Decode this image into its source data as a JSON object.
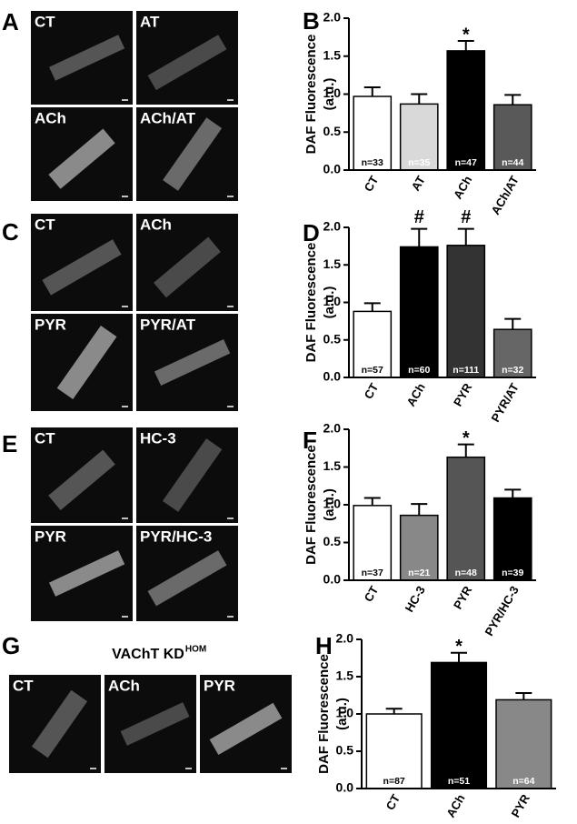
{
  "image_panels": [
    {
      "letter": "A",
      "labels": [
        "CT",
        "AT",
        "ACh",
        "ACh/AT"
      ]
    },
    {
      "letter": "C",
      "labels": [
        "CT",
        "ACh",
        "PYR",
        "PYR/AT"
      ]
    },
    {
      "letter": "E",
      "labels": [
        "CT",
        "HC-3",
        "PYR",
        "PYR/HC-3"
      ]
    },
    {
      "letter": "G",
      "title": "VAChT KD",
      "title_superscript": "HOM",
      "labels": [
        "CT",
        "ACh",
        "PYR"
      ]
    }
  ],
  "chart_data": [
    {
      "type": "bar",
      "letter": "B",
      "ylabel": "DAF Fluorescence",
      "ylabel_unit": "(a.u.)",
      "categories": [
        "CT",
        "AT",
        "ACh",
        "ACh/AT"
      ],
      "values": [
        0.97,
        0.87,
        1.57,
        0.86
      ],
      "errors": [
        0.12,
        0.13,
        0.13,
        0.13
      ],
      "colors": [
        "#ffffff",
        "#d9d9d9",
        "#000000",
        "#595959"
      ],
      "n_labels": [
        "n=33",
        "n=35",
        "n=47",
        "n=44"
      ],
      "markers": [
        null,
        null,
        "*",
        null
      ],
      "ylim": [
        0,
        2
      ],
      "yticks": [
        {
          "value": 0,
          "label": "0.0"
        },
        0.5,
        {
          "value": 1,
          "label": "1.0"
        },
        1.5,
        {
          "value": 2,
          "label": "2.0"
        }
      ]
    },
    {
      "type": "bar",
      "letter": "D",
      "ylabel": "DAF Fluorescence",
      "ylabel_unit": "(a.u.)",
      "categories": [
        "CT",
        "ACh",
        "PYR",
        "PYR/AT"
      ],
      "values": [
        0.88,
        1.74,
        1.76,
        0.64
      ],
      "errors": [
        0.11,
        0.24,
        0.22,
        0.14
      ],
      "colors": [
        "#ffffff",
        "#000000",
        "#333333",
        "#666666"
      ],
      "n_labels": [
        "n=57",
        "n=60",
        "n=111",
        "n=32"
      ],
      "markers": [
        null,
        "#",
        "#",
        null
      ],
      "ylim": [
        0,
        2
      ],
      "yticks": [
        {
          "value": 0,
          "label": "0.0"
        },
        0.5,
        {
          "value": 1,
          "label": "1.0"
        },
        1.5,
        {
          "value": 2,
          "label": "2.0"
        }
      ]
    },
    {
      "type": "bar",
      "letter": "F",
      "ylabel": "DAF Fluorescence",
      "ylabel_unit": "(a.u.)",
      "categories": [
        "CT",
        "HC-3",
        "PYR",
        "PYR/HC-3"
      ],
      "values": [
        0.99,
        0.86,
        1.63,
        1.09
      ],
      "errors": [
        0.1,
        0.15,
        0.17,
        0.11
      ],
      "colors": [
        "#ffffff",
        "#888888",
        "#555555",
        "#000000"
      ],
      "n_labels": [
        "n=37",
        "n=21",
        "n=48",
        "n=39"
      ],
      "markers": [
        null,
        null,
        "*",
        null
      ],
      "ylim": [
        0,
        2
      ],
      "yticks": [
        {
          "value": 0,
          "label": "0.0"
        },
        0.5,
        {
          "value": 1,
          "label": "1.0"
        },
        1.5,
        {
          "value": 2,
          "label": "2.0"
        }
      ]
    },
    {
      "type": "bar",
      "letter": "H",
      "ylabel": "DAF Fluorescence",
      "ylabel_unit": "(a.u.)",
      "categories": [
        "CT",
        "ACh",
        "PYR"
      ],
      "values": [
        1.0,
        1.69,
        1.19
      ],
      "errors": [
        0.07,
        0.13,
        0.09
      ],
      "colors": [
        "#ffffff",
        "#000000",
        "#888888"
      ],
      "n_labels": [
        "n=87",
        "n=51",
        "n=64"
      ],
      "markers": [
        null,
        "*",
        null
      ],
      "ylim": [
        0,
        2
      ],
      "yticks": [
        {
          "value": 0,
          "label": "0.0"
        },
        0.5,
        {
          "value": 1,
          "label": "1.0"
        },
        1.5,
        {
          "value": 2,
          "label": "2.0"
        }
      ]
    }
  ]
}
